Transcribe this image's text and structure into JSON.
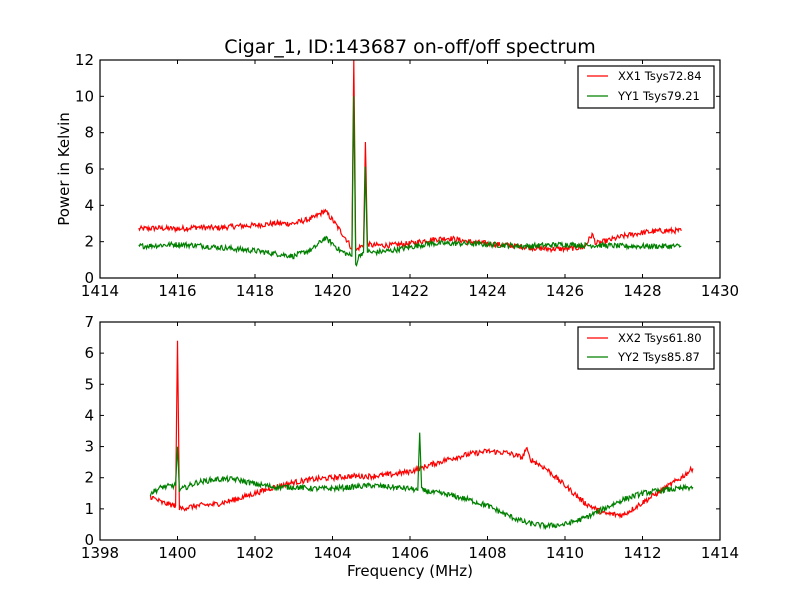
{
  "chart_data": [
    {
      "type": "line",
      "title": "Cigar_1, ID:143687 on-off/off spectrum",
      "xlabel": "",
      "ylabel": "Power in Kelvin",
      "xlim": [
        1414,
        1430
      ],
      "ylim": [
        0,
        12
      ],
      "xticks": [
        1414,
        1416,
        1418,
        1420,
        1422,
        1424,
        1426,
        1428,
        1430
      ],
      "yticks": [
        0,
        2,
        4,
        6,
        8,
        10,
        12
      ],
      "grid": false,
      "legend_position": "top-right",
      "series": [
        {
          "name": "XX1 Tsys72.84",
          "color": "#ff0000",
          "x": [
            1415.0,
            1415.5,
            1416.0,
            1416.5,
            1417.0,
            1417.5,
            1418.0,
            1418.5,
            1419.0,
            1419.5,
            1419.8,
            1420.0,
            1420.2,
            1420.4,
            1420.5,
            1420.55,
            1420.6,
            1420.7,
            1420.8,
            1420.85,
            1420.9,
            1421.0,
            1421.5,
            1422.0,
            1422.5,
            1423.0,
            1423.5,
            1424.0,
            1424.5,
            1425.0,
            1425.5,
            1426.0,
            1426.5,
            1426.7,
            1426.8,
            1427.0,
            1427.5,
            1428.0,
            1428.5,
            1429.0
          ],
          "y": [
            2.7,
            2.75,
            2.7,
            2.8,
            2.75,
            2.85,
            2.9,
            3.0,
            3.0,
            3.3,
            3.7,
            3.2,
            2.6,
            2.0,
            1.6,
            12.0,
            1.5,
            1.7,
            1.8,
            7.6,
            1.9,
            1.8,
            1.8,
            1.9,
            2.1,
            2.2,
            2.0,
            1.9,
            1.8,
            1.7,
            1.6,
            1.6,
            1.7,
            2.4,
            1.9,
            2.0,
            2.3,
            2.5,
            2.6,
            2.6
          ]
        },
        {
          "name": "YY1 Tsys79.21",
          "color": "#008000",
          "x": [
            1415.0,
            1415.5,
            1416.0,
            1416.5,
            1417.0,
            1417.5,
            1418.0,
            1418.5,
            1419.0,
            1419.5,
            1419.8,
            1420.0,
            1420.2,
            1420.4,
            1420.5,
            1420.55,
            1420.6,
            1420.7,
            1420.8,
            1420.85,
            1420.9,
            1421.0,
            1421.5,
            1422.0,
            1422.5,
            1423.0,
            1423.5,
            1424.0,
            1424.5,
            1425.0,
            1425.5,
            1426.0,
            1426.5,
            1427.0,
            1427.5,
            1428.0,
            1428.5,
            1429.0
          ],
          "y": [
            1.75,
            1.8,
            1.85,
            1.8,
            1.7,
            1.6,
            1.5,
            1.35,
            1.2,
            1.6,
            2.2,
            1.9,
            1.5,
            1.3,
            1.2,
            10.0,
            0.7,
            1.3,
            1.4,
            6.0,
            1.5,
            1.4,
            1.5,
            1.7,
            1.9,
            1.9,
            1.9,
            1.85,
            1.8,
            1.75,
            1.8,
            1.85,
            1.8,
            1.8,
            1.75,
            1.75,
            1.75,
            1.75
          ]
        }
      ]
    },
    {
      "type": "line",
      "title": "",
      "xlabel": "Frequency (MHz)",
      "ylabel": "",
      "xlim": [
        1398,
        1414
      ],
      "ylim": [
        0,
        7
      ],
      "xticks": [
        1398,
        1400,
        1402,
        1404,
        1406,
        1408,
        1410,
        1412,
        1414
      ],
      "yticks": [
        0,
        1,
        2,
        3,
        4,
        5,
        6,
        7
      ],
      "grid": false,
      "legend_position": "top-right",
      "series": [
        {
          "name": "XX2 Tsys61.80",
          "color": "#ff0000",
          "x": [
            1399.3,
            1399.6,
            1399.95,
            1400.0,
            1400.05,
            1400.5,
            1401.0,
            1401.5,
            1402.0,
            1402.5,
            1403.0,
            1403.5,
            1404.0,
            1404.5,
            1405.0,
            1405.5,
            1406.0,
            1406.5,
            1407.0,
            1407.5,
            1408.0,
            1408.5,
            1408.9,
            1409.0,
            1409.1,
            1409.5,
            1410.0,
            1410.5,
            1411.0,
            1411.5,
            1412.0,
            1412.5,
            1413.0,
            1413.3
          ],
          "y": [
            1.4,
            1.2,
            1.1,
            6.4,
            1.0,
            1.1,
            1.15,
            1.3,
            1.5,
            1.7,
            1.85,
            1.95,
            2.0,
            2.05,
            2.05,
            2.1,
            2.2,
            2.4,
            2.6,
            2.75,
            2.85,
            2.8,
            2.65,
            2.95,
            2.6,
            2.3,
            1.75,
            1.2,
            0.85,
            0.8,
            1.2,
            1.6,
            2.0,
            2.3
          ]
        },
        {
          "name": "YY2 Tsys85.87",
          "color": "#008000",
          "x": [
            1399.3,
            1399.6,
            1399.95,
            1400.0,
            1400.05,
            1400.5,
            1401.0,
            1401.5,
            1402.0,
            1402.5,
            1403.0,
            1403.5,
            1404.0,
            1404.5,
            1405.0,
            1405.5,
            1406.0,
            1406.2,
            1406.25,
            1406.3,
            1406.5,
            1407.0,
            1407.5,
            1408.0,
            1408.5,
            1409.0,
            1409.5,
            1410.0,
            1410.5,
            1411.0,
            1411.5,
            1412.0,
            1412.5,
            1413.0,
            1413.3
          ],
          "y": [
            1.5,
            1.7,
            1.75,
            3.0,
            1.6,
            1.85,
            1.95,
            1.95,
            1.8,
            1.7,
            1.7,
            1.65,
            1.65,
            1.7,
            1.75,
            1.7,
            1.65,
            1.6,
            3.45,
            1.6,
            1.55,
            1.45,
            1.3,
            1.1,
            0.8,
            0.55,
            0.45,
            0.5,
            0.7,
            1.0,
            1.3,
            1.5,
            1.6,
            1.65,
            1.7
          ]
        }
      ]
    }
  ]
}
